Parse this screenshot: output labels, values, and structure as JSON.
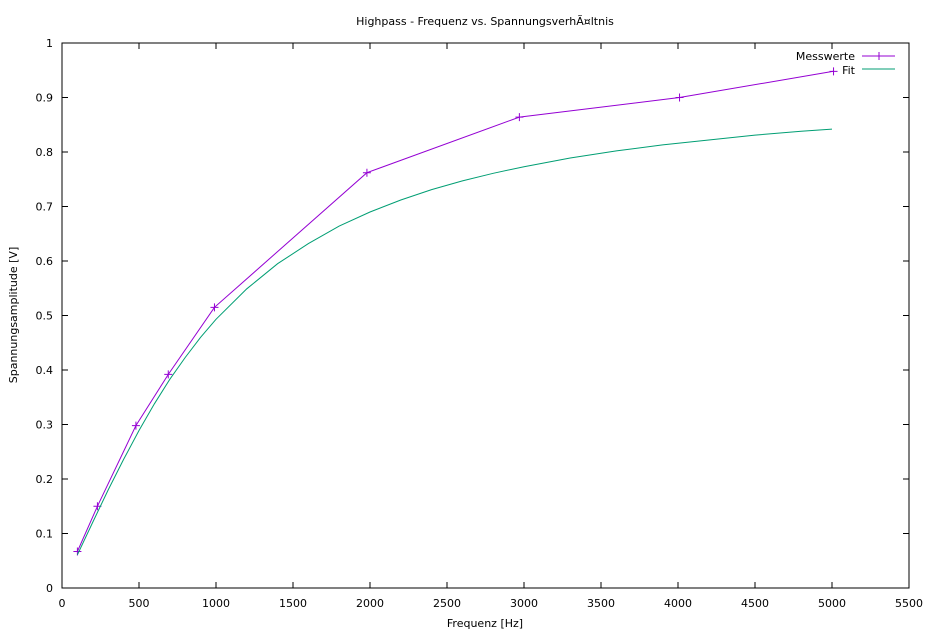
{
  "chart_data": {
    "type": "line",
    "title": "Highpass - Frequenz vs. SpannungsverhÃ¤ltnis",
    "xlabel": "Frequenz [Hz]",
    "ylabel": "Spannungsamplitude [V]",
    "xlim": [
      0,
      5500
    ],
    "ylim": [
      0,
      1
    ],
    "xticks": [
      "0",
      "500",
      "1000",
      "1500",
      "2000",
      "2500",
      "3000",
      "3500",
      "4000",
      "4500",
      "5000",
      "5500"
    ],
    "yticks": [
      "0",
      "0.1",
      "0.2",
      "0.3",
      "0.4",
      "0.5",
      "0.6",
      "0.7",
      "0.8",
      "0.9",
      "1"
    ],
    "xtick_values": [
      0,
      500,
      1000,
      1500,
      2000,
      2500,
      3000,
      3500,
      4000,
      4500,
      5000,
      5500
    ],
    "ytick_values": [
      0,
      0.1,
      0.2,
      0.3,
      0.4,
      0.5,
      0.6,
      0.7,
      0.8,
      0.9,
      1
    ],
    "grid": false,
    "legend_position": "top-right",
    "series": [
      {
        "name": "Messwerte",
        "kind": "linespoints",
        "color": "#9400d3",
        "x": [
          100,
          230,
          480,
          690,
          990,
          1980,
          2970,
          4010,
          5010
        ],
        "y": [
          0.067,
          0.15,
          0.298,
          0.392,
          0.515,
          0.762,
          0.864,
          0.9,
          0.948
        ]
      },
      {
        "name": "Fit",
        "kind": "line",
        "color": "#009e73",
        "x": [
          100,
          200,
          300,
          400,
          500,
          600,
          700,
          800,
          900,
          1000,
          1200,
          1400,
          1600,
          1800,
          2000,
          2200,
          2400,
          2600,
          2800,
          3000,
          3300,
          3600,
          3900,
          4200,
          4500,
          4800,
          5000
        ],
        "y": [
          0.061,
          0.121,
          0.18,
          0.236,
          0.289,
          0.338,
          0.383,
          0.423,
          0.46,
          0.493,
          0.549,
          0.595,
          0.632,
          0.664,
          0.69,
          0.712,
          0.731,
          0.747,
          0.761,
          0.773,
          0.789,
          0.802,
          0.813,
          0.822,
          0.831,
          0.838,
          0.842
        ]
      }
    ]
  }
}
